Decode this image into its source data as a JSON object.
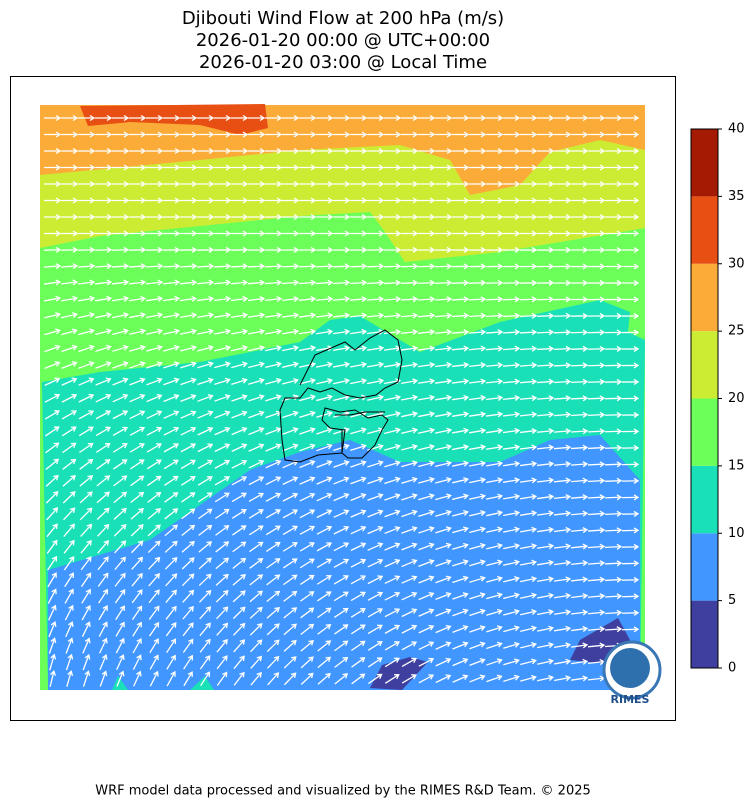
{
  "title": [
    "Djibouti Wind Flow at 200 hPa (m/s)",
    "2026-01-20 00:00 @ UTC+00:00",
    "2026-01-20 03:00 @ Local Time"
  ],
  "colorbar": {
    "ticks": [
      0,
      5,
      10,
      15,
      20,
      25,
      30,
      35,
      40
    ],
    "colors": [
      "#3f3fa0",
      "#4196ff",
      "#1ae0b8",
      "#6cff5a",
      "#ccec33",
      "#fbab38",
      "#e84f12",
      "#a51a02"
    ]
  },
  "logo_text": "RIMES",
  "footer": "WRF model data processed and visualized by the RIMES R&D Team. © 2025"
}
